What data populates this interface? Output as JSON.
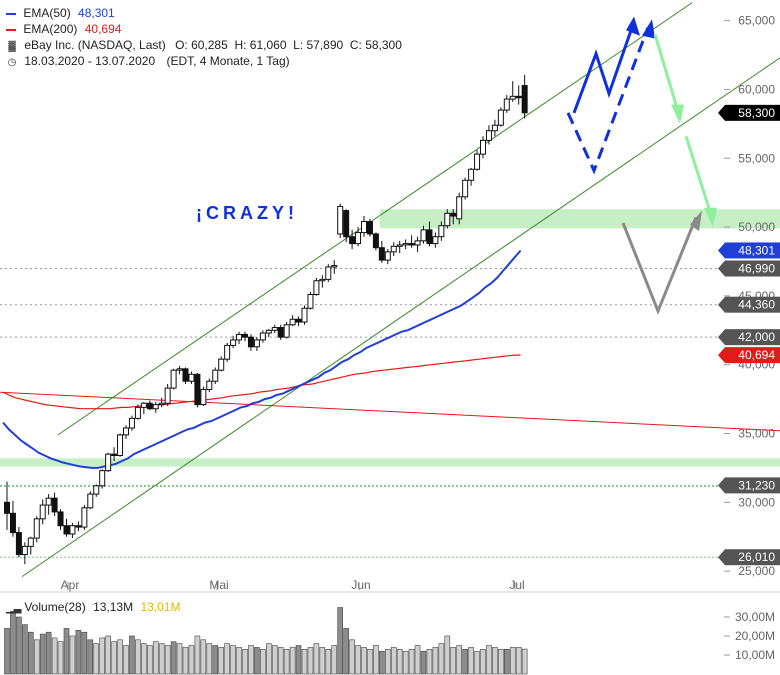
{
  "legend": {
    "ema50_label": "EMA(50)",
    "ema50_value": "48,301",
    "ema50_color": "#1f3fd6",
    "ema200_label": "EMA(200)",
    "ema200_value": "40,694",
    "ema200_color": "#e21a1a",
    "instrument": "eBay Inc. (NASDAQ, Last)",
    "ohlc": "O: 60,285  H: 61,060  L: 57,890  C: 58,300",
    "period": "18.03.2020 - 13.07.2020",
    "period_detail": "(EDT, 4 Monate, 1 Tag)",
    "instrument_icon": "candlestick-icon",
    "period_icon": "clock-icon"
  },
  "annotation": {
    "text": "¡CRAZY!",
    "color": "#1030e0"
  },
  "chart_data": {
    "type": "candlestick",
    "x_labels": [
      "Apr",
      "Mai",
      "Jun",
      "Jul"
    ],
    "y_ticks": [
      "65,000",
      "60,000",
      "55,000",
      "50,000",
      "45,000",
      "40,000",
      "35,000",
      "30,000",
      "25,000"
    ],
    "y_tick_values": [
      65,
      60,
      55,
      50,
      45,
      40,
      35,
      30,
      25
    ],
    "ylim": [
      24.5,
      66.5
    ],
    "price_badges": [
      {
        "label": "58,300",
        "value": 58.3,
        "bg": "#000000"
      },
      {
        "label": "48,301",
        "value": 48.301,
        "bg": "#1f3fd6"
      },
      {
        "label": "46,990",
        "value": 46.99,
        "bg": "#555555"
      },
      {
        "label": "44,360",
        "value": 44.36,
        "bg": "#555555"
      },
      {
        "label": "42,000",
        "value": 42.0,
        "bg": "#555555"
      },
      {
        "label": "40,694",
        "value": 40.694,
        "bg": "#e21a1a"
      },
      {
        "label": "31,230",
        "value": 31.23,
        "bg": "#555555"
      },
      {
        "label": "26,010",
        "value": 26.01,
        "bg": "#555555"
      }
    ],
    "ohlc": [
      [
        30.0,
        31.5,
        28.0,
        29.2
      ],
      [
        29.2,
        30.1,
        27.5,
        27.8
      ],
      [
        27.8,
        28.2,
        26.0,
        26.2
      ],
      [
        26.2,
        27.1,
        25.5,
        26.8
      ],
      [
        26.8,
        27.5,
        26.2,
        27.4
      ],
      [
        27.4,
        29.0,
        27.1,
        28.8
      ],
      [
        28.8,
        30.2,
        28.4,
        29.8
      ],
      [
        29.8,
        30.6,
        29.1,
        30.3
      ],
      [
        30.3,
        30.7,
        29.0,
        29.3
      ],
      [
        29.3,
        29.5,
        28.0,
        28.3
      ],
      [
        28.3,
        28.8,
        27.5,
        27.7
      ],
      [
        27.7,
        28.5,
        27.4,
        28.3
      ],
      [
        28.3,
        28.6,
        27.9,
        28.2
      ],
      [
        28.2,
        29.8,
        28.0,
        29.6
      ],
      [
        29.6,
        30.8,
        29.5,
        30.6
      ],
      [
        30.6,
        31.3,
        30.4,
        31.2
      ],
      [
        31.2,
        32.4,
        31.0,
        32.3
      ],
      [
        32.3,
        33.6,
        32.2,
        33.5
      ],
      [
        33.5,
        34.0,
        33.0,
        33.4
      ],
      [
        33.4,
        35.0,
        33.3,
        34.9
      ],
      [
        34.9,
        35.6,
        34.6,
        35.4
      ],
      [
        35.4,
        36.3,
        35.2,
        36.1
      ],
      [
        36.1,
        37.1,
        36.0,
        36.9
      ],
      [
        36.9,
        37.3,
        36.4,
        37.2
      ],
      [
        37.2,
        37.4,
        36.7,
        36.8
      ],
      [
        36.8,
        37.3,
        36.5,
        37.1
      ],
      [
        37.1,
        37.6,
        36.9,
        37.2
      ],
      [
        37.2,
        38.6,
        37.0,
        38.3
      ],
      [
        38.3,
        39.7,
        38.2,
        39.6
      ],
      [
        39.6,
        39.9,
        39.3,
        39.7
      ],
      [
        39.7,
        39.8,
        38.6,
        38.8
      ],
      [
        38.8,
        39.5,
        38.6,
        39.3
      ],
      [
        39.3,
        39.4,
        36.9,
        37.1
      ],
      [
        37.1,
        38.4,
        37.0,
        38.2
      ],
      [
        38.2,
        39.0,
        38.0,
        38.8
      ],
      [
        38.8,
        39.8,
        38.6,
        39.6
      ],
      [
        39.6,
        40.6,
        39.5,
        40.4
      ],
      [
        40.4,
        41.6,
        40.2,
        41.4
      ],
      [
        41.4,
        42.1,
        41.2,
        41.8
      ],
      [
        41.8,
        42.4,
        41.5,
        42.2
      ],
      [
        42.2,
        42.4,
        41.7,
        42.0
      ],
      [
        42.0,
        42.2,
        41.0,
        41.3
      ],
      [
        41.3,
        42.0,
        41.0,
        41.8
      ],
      [
        41.8,
        42.5,
        41.6,
        42.3
      ],
      [
        42.3,
        42.6,
        42.0,
        42.5
      ],
      [
        42.5,
        42.9,
        42.3,
        42.7
      ],
      [
        42.7,
        42.9,
        41.8,
        42.0
      ],
      [
        42.0,
        43.1,
        41.9,
        42.9
      ],
      [
        42.9,
        43.6,
        42.8,
        43.3
      ],
      [
        43.3,
        43.5,
        42.8,
        43.1
      ],
      [
        43.1,
        44.3,
        42.9,
        44.1
      ],
      [
        44.1,
        45.3,
        44.0,
        45.1
      ],
      [
        45.1,
        46.3,
        45.0,
        46.1
      ],
      [
        46.1,
        46.5,
        45.6,
        46.2
      ],
      [
        46.2,
        47.3,
        46.0,
        47.1
      ],
      [
        47.1,
        47.6,
        46.6,
        47.2
      ],
      [
        49.5,
        51.7,
        49.2,
        51.5
      ],
      [
        51.2,
        51.3,
        48.9,
        49.3
      ],
      [
        49.3,
        49.8,
        48.4,
        48.8
      ],
      [
        48.8,
        50.0,
        48.6,
        49.6
      ],
      [
        49.6,
        50.8,
        49.3,
        50.4
      ],
      [
        50.4,
        50.6,
        49.3,
        49.5
      ],
      [
        49.5,
        49.6,
        48.3,
        48.5
      ],
      [
        48.5,
        49.0,
        47.4,
        47.6
      ],
      [
        47.6,
        48.4,
        47.3,
        48.2
      ],
      [
        48.2,
        48.9,
        47.9,
        48.6
      ],
      [
        48.6,
        49.0,
        48.1,
        48.7
      ],
      [
        48.7,
        49.1,
        48.4,
        48.8
      ],
      [
        48.8,
        49.4,
        48.5,
        48.7
      ],
      [
        48.7,
        49.3,
        48.2,
        49.0
      ],
      [
        49.0,
        50.1,
        48.8,
        49.8
      ],
      [
        49.8,
        50.4,
        48.6,
        48.8
      ],
      [
        48.8,
        49.6,
        48.5,
        49.3
      ],
      [
        49.3,
        50.4,
        49.0,
        50.1
      ],
      [
        50.1,
        51.3,
        49.9,
        51.0
      ],
      [
        51.0,
        51.3,
        50.2,
        50.8
      ],
      [
        50.6,
        52.5,
        50.2,
        52.2
      ],
      [
        52.2,
        53.6,
        52.0,
        53.4
      ],
      [
        53.4,
        54.3,
        53.0,
        54.2
      ],
      [
        54.2,
        55.6,
        54.1,
        55.3
      ],
      [
        55.3,
        56.6,
        55.0,
        56.3
      ],
      [
        56.3,
        57.4,
        56.0,
        57.0
      ],
      [
        57.0,
        57.8,
        56.6,
        57.4
      ],
      [
        57.4,
        58.7,
        57.3,
        58.5
      ],
      [
        58.5,
        59.6,
        58.3,
        59.3
      ],
      [
        59.3,
        60.6,
        59.1,
        59.5
      ],
      [
        59.5,
        60.3,
        58.9,
        59.4
      ],
      [
        60.285,
        61.06,
        57.89,
        58.3
      ]
    ],
    "ema50": [
      35.8,
      35.3,
      34.9,
      34.5,
      34.2,
      33.9,
      33.6,
      33.4,
      33.2,
      33.05,
      32.9,
      32.8,
      32.7,
      32.6,
      32.55,
      32.5,
      32.5,
      32.6,
      32.7,
      32.8,
      33.0,
      33.2,
      33.5,
      33.7,
      33.9,
      34.1,
      34.3,
      34.5,
      34.7,
      34.9,
      35.1,
      35.3,
      35.4,
      35.6,
      35.8,
      35.9,
      36.1,
      36.3,
      36.5,
      36.7,
      36.9,
      37.0,
      37.2,
      37.3,
      37.5,
      37.6,
      37.8,
      37.9,
      38.1,
      38.3,
      38.5,
      38.7,
      38.9,
      39.1,
      39.4,
      39.6,
      39.9,
      40.2,
      40.4,
      40.7,
      40.9,
      41.2,
      41.4,
      41.6,
      41.8,
      42.0,
      42.2,
      42.4,
      42.5,
      42.7,
      42.9,
      43.1,
      43.3,
      43.5,
      43.7,
      43.9,
      44.1,
      44.3,
      44.6,
      44.9,
      45.2,
      45.6,
      45.9,
      46.3,
      46.8,
      47.3,
      47.8,
      48.301
    ],
    "ema200": [
      38.0,
      37.8,
      37.6,
      37.5,
      37.4,
      37.3,
      37.2,
      37.1,
      37.05,
      37.0,
      36.95,
      36.9,
      36.85,
      36.8,
      36.8,
      36.8,
      36.8,
      36.8,
      36.8,
      36.85,
      36.9,
      36.9,
      36.95,
      37.0,
      37.0,
      37.05,
      37.1,
      37.1,
      37.15,
      37.2,
      37.25,
      37.3,
      37.35,
      37.4,
      37.45,
      37.5,
      37.55,
      37.6,
      37.7,
      37.75,
      37.8,
      37.85,
      37.9,
      38.0,
      38.05,
      38.1,
      38.2,
      38.25,
      38.3,
      38.4,
      38.5,
      38.55,
      38.6,
      38.7,
      38.8,
      38.9,
      39.0,
      39.1,
      39.2,
      39.3,
      39.35,
      39.4,
      39.5,
      39.55,
      39.6,
      39.65,
      39.7,
      39.75,
      39.8,
      39.85,
      39.9,
      39.95,
      40.0,
      40.05,
      40.1,
      40.15,
      40.2,
      40.25,
      40.3,
      40.35,
      40.4,
      40.45,
      40.5,
      40.55,
      40.6,
      40.65,
      40.7,
      40.694
    ],
    "volume": {
      "label": "Volume(28)",
      "value": "13,13M",
      "avg": "13,01M",
      "avg_color": "#e6b800",
      "y_ticks": [
        "30,00M",
        "20,00M",
        "10,00M"
      ],
      "y_tick_values": [
        30,
        20,
        10
      ],
      "ylim": [
        0,
        40
      ],
      "values": [
        24,
        33,
        30,
        26,
        22,
        18,
        21,
        22,
        19,
        17,
        24,
        20,
        23,
        22,
        18,
        16,
        19,
        20,
        17,
        18,
        15,
        20,
        18,
        16,
        15,
        17,
        16,
        15,
        17,
        16,
        14,
        15,
        20,
        18,
        16,
        15,
        14,
        16,
        15,
        14,
        13,
        15,
        14,
        13,
        16,
        15,
        14,
        13,
        14,
        15,
        13,
        14,
        16,
        14,
        13,
        15,
        35,
        24,
        18,
        15,
        14,
        13,
        15,
        12,
        13,
        14,
        13,
        12,
        13,
        15,
        12,
        13,
        14,
        16,
        20,
        14,
        15,
        13,
        14,
        12,
        13,
        15,
        14,
        13,
        13,
        14,
        14,
        13.13
      ]
    },
    "trend_channel": {
      "upper": [
        [
          8,
          34.1
        ],
        [
          88,
          54.5
        ]
      ],
      "lower": [
        [
          2,
          23.6
        ],
        [
          95,
          52.8
        ]
      ]
    },
    "upper_line_label": "",
    "support_zones": [
      [
        49.9,
        51.3
      ],
      [
        32.6,
        33.2
      ]
    ],
    "support_lines": [
      31.23,
      31.15,
      26.01
    ]
  }
}
